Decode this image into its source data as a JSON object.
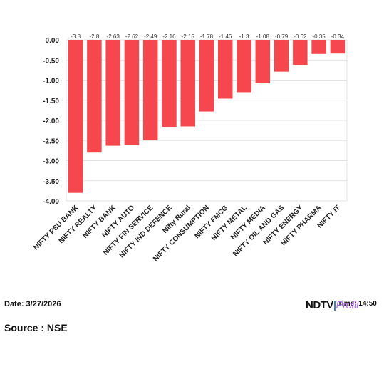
{
  "chart_data": {
    "type": "bar",
    "categories": [
      "NIFTY PSU BANK",
      "NIFTY REALTY",
      "NIFTY BANK",
      "NIFTY AUTO",
      "NIFTY FIN SERVICE",
      "NIFTY IND DEFENCE",
      "Nifty Rural",
      "NIFTY CONSUMPTION",
      "NIFTY FMCG",
      "NIFTY METAL",
      "NIFTY MEDIA",
      "NIFTY OIL AND GAS",
      "NIFTY ENERGY",
      "NIFTY PHARMA",
      "NIFTY IT"
    ],
    "values": [
      -3.8,
      -2.8,
      -2.63,
      -2.62,
      -2.49,
      -2.16,
      -2.15,
      -1.78,
      -1.46,
      -1.3,
      -1.08,
      -0.79,
      -0.62,
      -0.35,
      -0.34
    ],
    "data_labels": [
      "-3.8",
      "-2.8",
      "-2.63",
      "-2.62",
      "-2.49",
      "-2.16",
      "-2.15",
      "-1.78",
      "-1.46",
      "-1.3",
      "-1.08",
      "-0.79",
      "-0.62",
      "-0.35",
      "-0.34"
    ],
    "ylim": [
      -4.0,
      0.0
    ],
    "yticks": [
      0,
      -0.5,
      -1,
      -1.5,
      -2,
      -2.5,
      -3,
      -3.5,
      -4
    ],
    "ytick_labels": [
      "0.00",
      "-0.50",
      "-1.00",
      "-1.50",
      "-2.00",
      "-2.50",
      "-3.00",
      "-3.50",
      "-4.00"
    ],
    "bar_color": "#f5474d",
    "grid": true,
    "title": "",
    "xlabel": "",
    "ylabel": ""
  },
  "footer": {
    "date": "Date: 3/27/2026",
    "time": "Time: 14:50",
    "source": "Source : NSE"
  },
  "logo": {
    "ndtv": "NDTV",
    "profit": "Profit"
  }
}
